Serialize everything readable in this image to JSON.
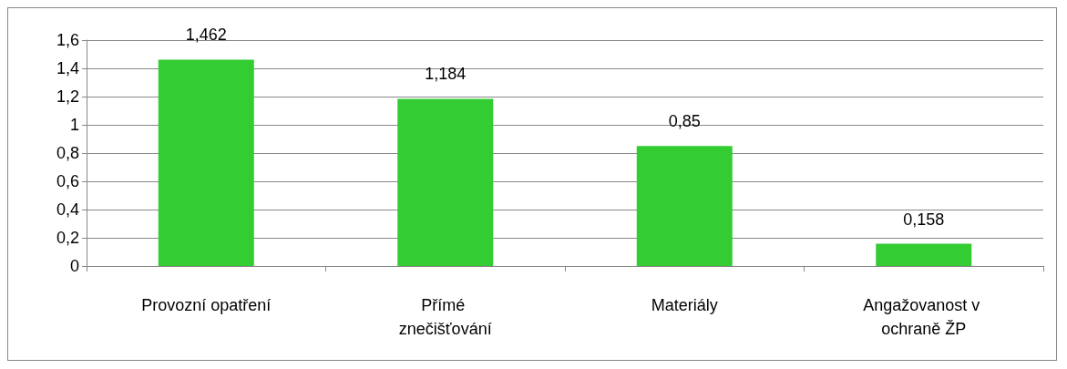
{
  "chart_data": {
    "type": "bar",
    "categories": [
      "Provozní opatření",
      "Přímé znečišťování",
      "Materiály",
      "Angažovanost v ochraně ŽP"
    ],
    "values": [
      1.462,
      1.184,
      0.85,
      0.158
    ],
    "value_labels": [
      "1,462",
      "1,184",
      "0,85",
      "0,158"
    ],
    "color": "#33cc33",
    "ylim": [
      0,
      1.6
    ],
    "yticks": [
      0,
      {
        "value": 0.2,
        "label": "0,2"
      },
      {
        "value": 0.4,
        "label": "0,4"
      },
      {
        "value": 0.6,
        "label": "0,6"
      },
      {
        "value": 0.8,
        "label": "0,8"
      },
      1,
      {
        "value": 1.2,
        "label": "1,2"
      },
      {
        "value": 1.4,
        "label": "1,4"
      },
      {
        "value": 1.6,
        "label": "1,6"
      }
    ],
    "grid": true
  }
}
